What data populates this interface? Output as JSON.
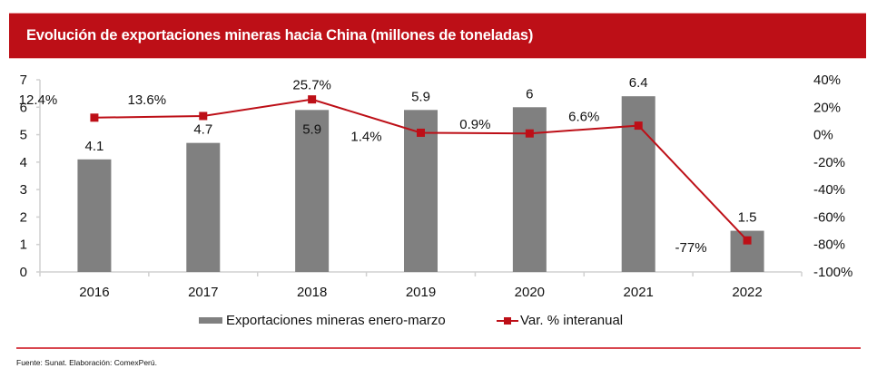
{
  "header": {
    "title": "Evolución de exportaciones mineras hacia China (millones de toneladas)"
  },
  "footer": {
    "source": "Fuente: Sunat. Elaboración: ComexPerú."
  },
  "colors": {
    "banner": "#BD0F17",
    "bars": "#808080",
    "line": "#BD0F17",
    "axis": "#d0d0d0"
  },
  "chart_data": {
    "type": "bar",
    "title": "Evolución de exportaciones mineras hacia China (millones de toneladas)",
    "categories": [
      "2016",
      "2017",
      "2018",
      "2019",
      "2020",
      "2021",
      "2022"
    ],
    "series": [
      {
        "name": "Exportaciones mineras enero-marzo",
        "type": "bar",
        "axis": "left",
        "values": [
          4.1,
          4.7,
          5.9,
          5.9,
          6,
          6.4,
          1.5
        ],
        "labels": [
          "4.1",
          "4.7",
          "5.9",
          "5.9",
          "6",
          "6.4",
          "1.5"
        ]
      },
      {
        "name": "Var. % interanual",
        "type": "line",
        "axis": "right",
        "values": [
          12.4,
          13.6,
          25.7,
          1.4,
          0.9,
          6.6,
          -77
        ],
        "labels": [
          "12.4%",
          "13.6%",
          "25.7%",
          "1.4%",
          "0.9%",
          "6.6%",
          "-77%"
        ]
      }
    ],
    "y_left": {
      "ylim": [
        0,
        7
      ],
      "ticks": [
        "0",
        "1",
        "2",
        "3",
        "4",
        "5",
        "6",
        "7"
      ]
    },
    "y_right": {
      "ylim": [
        -100,
        40
      ],
      "ticks": [
        "-100%",
        "-80%",
        "-60%",
        "-40%",
        "-20%",
        "0%",
        "20%",
        "40%"
      ]
    },
    "xlabel": "",
    "ylabel": "",
    "grid": false,
    "legend": {
      "position": "bottom",
      "entries": [
        "Exportaciones mineras enero-marzo",
        "Var. % interanual"
      ]
    }
  }
}
